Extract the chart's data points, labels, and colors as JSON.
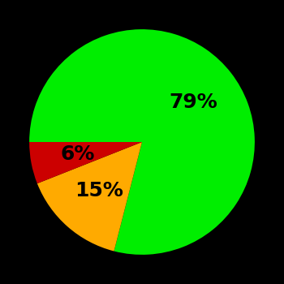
{
  "slices": [
    79,
    15,
    6
  ],
  "colors": [
    "#00ee00",
    "#ffaa00",
    "#cc0000"
  ],
  "labels": [
    "79%",
    "15%",
    "6%"
  ],
  "background_color": "#000000",
  "text_color": "#000000",
  "font_size": 18,
  "font_weight": "bold",
  "startangle": 180,
  "counterclock": false,
  "r_text": 0.58,
  "figsize": [
    3.5,
    3.5
  ],
  "dpi": 100
}
